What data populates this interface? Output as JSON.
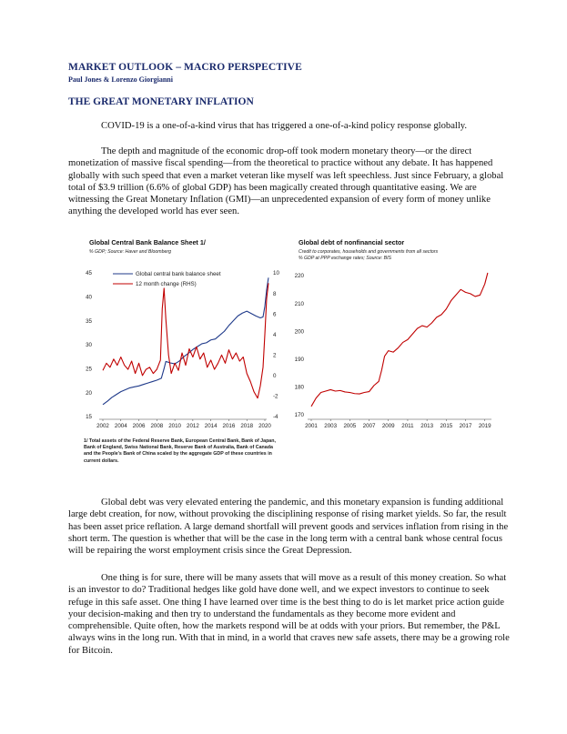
{
  "header": {
    "section": "MARKET OUTLOOK – MACRO PERSPECTIVE",
    "authors": "Paul Jones & Lorenzo Giorgianni",
    "title": "THE GREAT MONETARY INFLATION"
  },
  "paragraphs": [
    "COVID-19 is a one-of-a-kind virus that has triggered a one-of-a-kind policy response globally.",
    "The depth and magnitude of the economic drop-off took modern monetary theory—or the direct monetization of massive fiscal spending—from the theoretical to practice without any debate. It has happened globally with such speed that even a market veteran like myself was left speechless. Just since February, a global total of $3.9 trillion (6.6% of global GDP) has been magically created through quantitative easing. We are witnessing the Great Monetary Inflation (GMI)—an unprecedented expansion of every form of money unlike anything the developed world has ever seen.",
    "Global debt was very elevated entering the pandemic, and this monetary expansion is funding additional large debt creation, for now, without provoking the disciplining response of rising market yields. So far, the result has been asset price reflation. A large demand shortfall will prevent goods and services inflation from rising in the short term. The question is whether that will be the case in the long term with a central bank whose central focus will be repairing the worst employment crisis since the Great Depression.",
    "One thing is for sure, there will be many assets that will move as a result of this money creation. So what is an investor to do? Traditional hedges like gold have done well, and we expect investors to continue to seek refuge in this safe asset. One thing I have learned over time is the best thing to do is let market price action guide your decision-making and then try to understand the fundamentals as they become more evident and comprehensible. Quite often, how the markets respond will be at odds with your priors. But remember, the P&L always wins in the long run. With that in mind, in a world that craves new safe assets, there may be a growing role for Bitcoin."
  ],
  "footnote": "1/ Total assets of the Federal Reserve Bank, European Central Bank, Bank of Japan, Bank of England, Swiss National Bank, Reserve Bank of Australia, Bank of Canada and the People's Bank of China scaled by the aggregate GDP of these countries in current dollars.",
  "chart_data": [
    {
      "type": "line",
      "title": "Global Central Bank Balance Sheet 1/",
      "subtitle": "% GDP; Source: Haver and Bloomberg",
      "xlabel": "",
      "ylabel": "",
      "x_ticks": [
        "2002",
        "2004",
        "2006",
        "2008",
        "2010",
        "2012",
        "2014",
        "2016",
        "2018",
        "2020"
      ],
      "xlim": [
        2002,
        2020
      ],
      "ylim_left": [
        15,
        45
      ],
      "y_ticks_left": [
        15,
        20,
        25,
        30,
        35,
        40,
        45
      ],
      "ylim_right": [
        -4,
        10
      ],
      "y_ticks_right": [
        -4,
        -2,
        0,
        2,
        4,
        6,
        8,
        10
      ],
      "grid": false,
      "legend": "top-left",
      "series": [
        {
          "name": "Global central bank balance sheet",
          "axis": "left",
          "color": "#1f3a8a",
          "x": [
            2002,
            2002.5,
            2003,
            2003.5,
            2004,
            2004.5,
            2005,
            2005.5,
            2006,
            2006.5,
            2007,
            2007.5,
            2008,
            2008.5,
            2008.8,
            2009,
            2009.5,
            2010,
            2010.5,
            2011,
            2011.5,
            2012,
            2012.5,
            2013,
            2013.5,
            2014,
            2014.5,
            2015,
            2015.5,
            2016,
            2016.5,
            2017,
            2017.5,
            2018,
            2018.5,
            2019,
            2019.5,
            2019.8,
            2020,
            2020.2,
            2020.4
          ],
          "values": [
            17.5,
            18.2,
            19.0,
            19.6,
            20.2,
            20.6,
            21.0,
            21.2,
            21.4,
            21.7,
            22.0,
            22.3,
            22.6,
            23.0,
            25.0,
            26.5,
            26.2,
            26.0,
            26.6,
            27.5,
            28.2,
            29.0,
            29.6,
            30.2,
            30.4,
            31.0,
            31.2,
            32.0,
            32.8,
            34.0,
            35.0,
            36.0,
            36.6,
            37.0,
            36.5,
            36.0,
            35.6,
            35.8,
            38.0,
            41.5,
            44.0
          ]
        },
        {
          "name": "12 month change (RHS)",
          "axis": "right",
          "color": "#c00000",
          "x": [
            2002,
            2002.4,
            2002.8,
            2003.2,
            2003.6,
            2004,
            2004.4,
            2004.8,
            2005.2,
            2005.6,
            2006,
            2006.4,
            2006.8,
            2007.2,
            2007.6,
            2008,
            2008.4,
            2008.6,
            2008.8,
            2009,
            2009.3,
            2009.6,
            2010,
            2010.4,
            2010.8,
            2011.2,
            2011.6,
            2012,
            2012.4,
            2012.8,
            2013.2,
            2013.6,
            2014,
            2014.4,
            2014.8,
            2015.2,
            2015.6,
            2016,
            2016.4,
            2016.8,
            2017.2,
            2017.6,
            2018,
            2018.4,
            2018.8,
            2019.2,
            2019.5,
            2019.8,
            2020,
            2020.2,
            2020.4
          ],
          "values": [
            0.5,
            1.2,
            0.8,
            1.6,
            1.0,
            1.8,
            1.0,
            0.6,
            1.4,
            0.2,
            1.2,
            0.0,
            0.6,
            0.8,
            0.2,
            0.6,
            1.5,
            6.5,
            8.5,
            5.5,
            2.0,
            0.2,
            1.2,
            0.5,
            2.2,
            1.0,
            2.6,
            1.8,
            2.8,
            1.6,
            2.2,
            0.8,
            1.5,
            0.6,
            1.2,
            2.0,
            1.2,
            2.5,
            1.6,
            2.2,
            1.4,
            1.8,
            0.2,
            -0.6,
            -1.6,
            -2.2,
            -1.0,
            0.8,
            4.0,
            7.5,
            9.0
          ]
        }
      ]
    },
    {
      "type": "line",
      "title": "Global debt of nonfinancial sector",
      "subtitle": "Credit to corporates, households and governments from all sectors % GDP at PPP exchange rates; Source: BIS",
      "subtitle_lines": [
        "Credit to corporates, households and governments from all sectors",
        "% GDP at PPP exchange rates; Source: BIS"
      ],
      "xlabel": "",
      "ylabel": "",
      "x_ticks": [
        "2001",
        "2003",
        "2005",
        "2007",
        "2009",
        "2011",
        "2013",
        "2015",
        "2017",
        "2019"
      ],
      "xlim": [
        2001,
        2019.5
      ],
      "ylim": [
        170,
        220
      ],
      "y_ticks": [
        170,
        180,
        190,
        200,
        210,
        220
      ],
      "grid": false,
      "series": [
        {
          "color": "#c00000",
          "x": [
            2001,
            2001.5,
            2002,
            2002.5,
            2003,
            2003.5,
            2004,
            2004.5,
            2005,
            2005.5,
            2006,
            2006.5,
            2007,
            2007.5,
            2008,
            2008.3,
            2008.6,
            2009,
            2009.5,
            2010,
            2010.5,
            2011,
            2011.5,
            2012,
            2012.5,
            2013,
            2013.5,
            2014,
            2014.5,
            2015,
            2015.5,
            2016,
            2016.5,
            2017,
            2017.5,
            2018,
            2018.5,
            2019,
            2019.3
          ],
          "values": [
            173,
            176,
            178,
            178.5,
            179,
            178.5,
            178.7,
            178.2,
            178,
            177.6,
            177.5,
            178,
            178.3,
            180.5,
            182,
            186,
            191,
            193,
            192.5,
            194,
            196,
            197,
            199,
            201,
            202,
            201.5,
            203,
            205,
            206,
            208,
            211,
            213,
            215,
            214,
            213.5,
            212.5,
            213,
            217,
            221
          ]
        }
      ]
    }
  ]
}
